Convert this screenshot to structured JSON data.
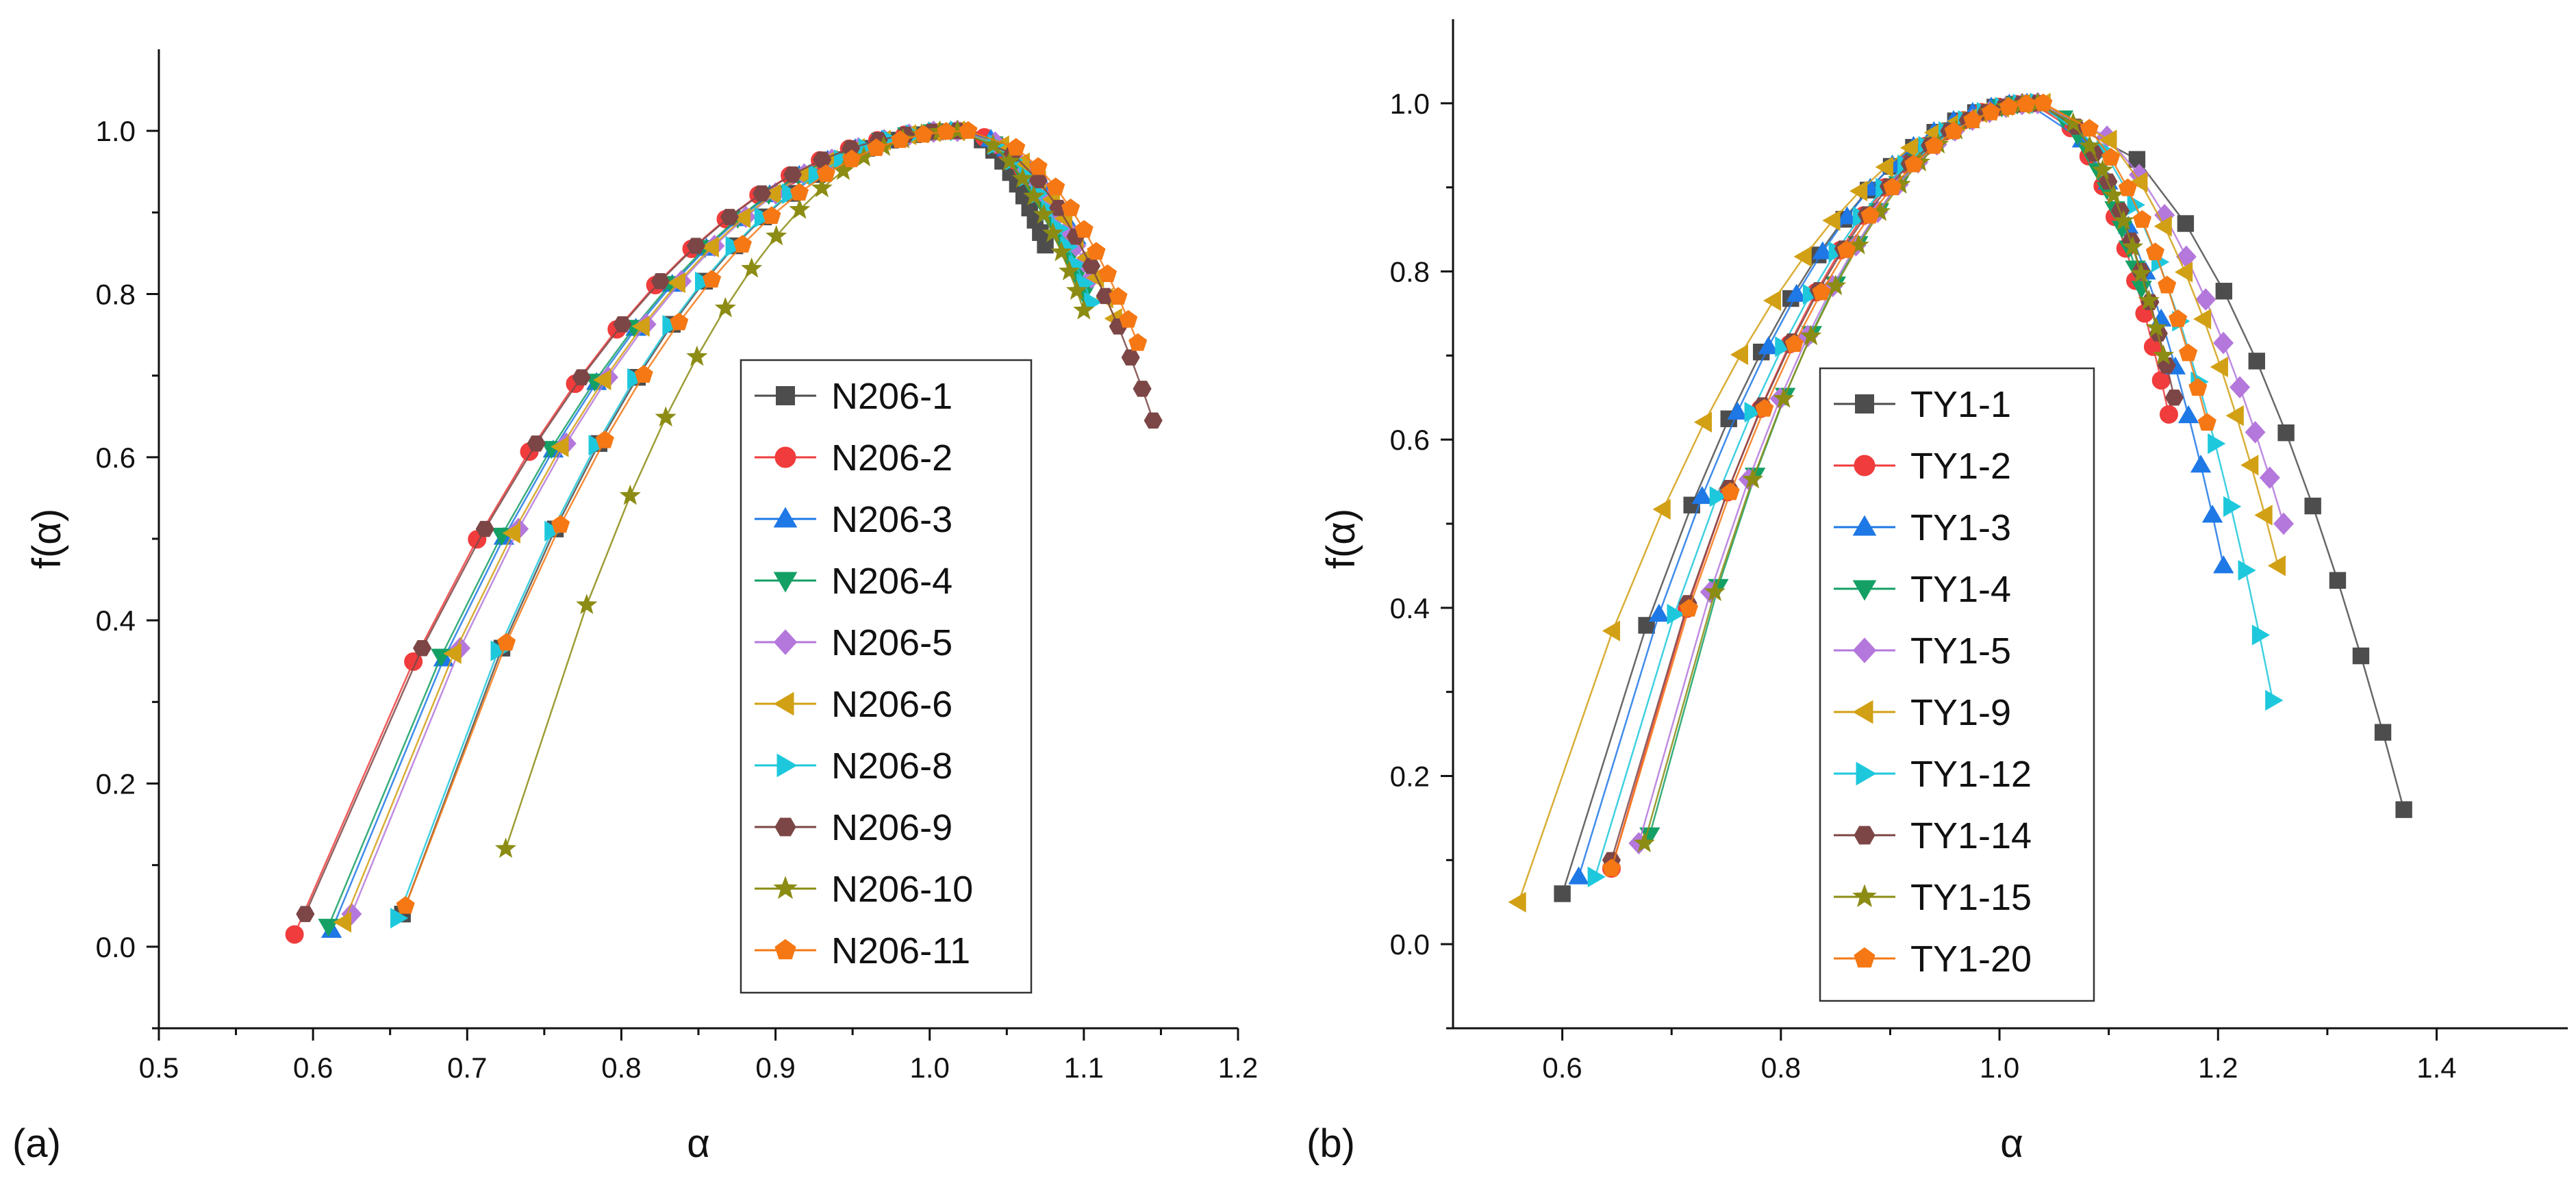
{
  "chart_data": [
    {
      "type": "line",
      "panel_label": "(a)",
      "title": "",
      "xlabel": "α",
      "ylabel": "f(α)",
      "xlim": [
        0.5,
        1.2
      ],
      "ylim": [
        -0.1,
        1.1
      ],
      "xticks": [
        0.5,
        0.6,
        0.7,
        0.8,
        0.9,
        1.0,
        1.1,
        1.2
      ],
      "xtick_labels": [
        "0.5",
        "0.6",
        "0.7",
        "0.8",
        "0.9",
        "1.0",
        "1.1",
        "1.2"
      ],
      "yticks": [
        0.0,
        0.2,
        0.4,
        0.6,
        0.8,
        1.0
      ],
      "ytick_labels": [
        "0.0",
        "0.2",
        "0.4",
        "0.6",
        "0.8",
        "1.0"
      ],
      "grid": false,
      "legend_position": "center-right",
      "series": [
        {
          "name": "N206-1",
          "color": "#4d4d4d",
          "marker": "square",
          "alpha_min": 0.658,
          "alpha_peak": 1.018,
          "alpha_max": 1.075,
          "f_min_left": 0.04,
          "f_min_right": 0.86
        },
        {
          "name": "N206-2",
          "color": "#f03c3c",
          "marker": "circle",
          "alpha_min": 0.588,
          "alpha_peak": 1.018,
          "alpha_max": 1.08,
          "f_min_left": 0.015,
          "f_min_right": 0.9
        },
        {
          "name": "N206-3",
          "color": "#1e78e6",
          "marker": "triangle-up",
          "alpha_min": 0.612,
          "alpha_peak": 1.018,
          "alpha_max": 1.095,
          "f_min_left": 0.02,
          "f_min_right": 0.87
        },
        {
          "name": "N206-4",
          "color": "#14a064",
          "marker": "triangle-down",
          "alpha_min": 0.61,
          "alpha_peak": 1.018,
          "alpha_max": 1.1,
          "f_min_left": 0.025,
          "f_min_right": 0.8
        },
        {
          "name": "N206-5",
          "color": "#b478dc",
          "marker": "diamond",
          "alpha_min": 0.625,
          "alpha_peak": 1.018,
          "alpha_max": 1.105,
          "f_min_left": 0.04,
          "f_min_right": 0.82
        },
        {
          "name": "N206-6",
          "color": "#d2a014",
          "marker": "triangle-left",
          "alpha_min": 0.62,
          "alpha_peak": 1.018,
          "alpha_max": 1.12,
          "f_min_left": 0.03,
          "f_min_right": 0.77
        },
        {
          "name": "N206-8",
          "color": "#1ec8dc",
          "marker": "triangle-right",
          "alpha_min": 0.655,
          "alpha_peak": 1.018,
          "alpha_max": 1.105,
          "f_min_left": 0.035,
          "f_min_right": 0.79
        },
        {
          "name": "N206-9",
          "color": "#7d4646",
          "marker": "hexagon",
          "alpha_min": 0.595,
          "alpha_peak": 1.018,
          "alpha_max": 1.145,
          "f_min_left": 0.04,
          "f_min_right": 0.645
        },
        {
          "name": "N206-10",
          "color": "#8c8c14",
          "marker": "star",
          "alpha_min": 0.725,
          "alpha_peak": 1.018,
          "alpha_max": 1.1,
          "f_min_left": 0.12,
          "f_min_right": 0.78
        },
        {
          "name": "N206-11",
          "color": "#f57814",
          "marker": "pentagon",
          "alpha_min": 0.66,
          "alpha_peak": 1.025,
          "alpha_max": 1.135,
          "f_min_left": 0.05,
          "f_min_right": 0.74
        }
      ]
    },
    {
      "type": "line",
      "panel_label": "(b)",
      "title": "",
      "xlabel": "α",
      "ylabel": "f(α)",
      "xlim": [
        0.5,
        1.52
      ],
      "ylim": [
        -0.1,
        1.1
      ],
      "xticks": [
        0.6,
        0.8,
        1.0,
        1.2,
        1.4
      ],
      "xtick_labels": [
        "0.6",
        "0.8",
        "1.0",
        "1.2",
        "1.4"
      ],
      "yticks": [
        0.0,
        0.2,
        0.4,
        0.6,
        0.8,
        1.0
      ],
      "ytick_labels": [
        "0.0",
        "0.2",
        "0.4",
        "0.6",
        "0.8",
        "1.0"
      ],
      "grid": false,
      "legend_position": "center-left",
      "series": [
        {
          "name": "TY1-1",
          "color": "#4d4d4d",
          "marker": "square",
          "alpha_min": 0.6,
          "alpha_peak": 1.03,
          "alpha_max": 1.37,
          "f_min_left": 0.06,
          "f_min_right": 0.16
        },
        {
          "name": "TY1-2",
          "color": "#f03c3c",
          "marker": "circle",
          "alpha_min": 0.645,
          "alpha_peak": 1.03,
          "alpha_max": 1.155,
          "f_min_left": 0.09,
          "f_min_right": 0.63
        },
        {
          "name": "TY1-3",
          "color": "#1e78e6",
          "marker": "triangle-up",
          "alpha_min": 0.615,
          "alpha_peak": 1.025,
          "alpha_max": 1.205,
          "f_min_left": 0.08,
          "f_min_right": 0.45
        },
        {
          "name": "TY1-4",
          "color": "#14a064",
          "marker": "triangle-down",
          "alpha_min": 0.68,
          "alpha_peak": 1.03,
          "alpha_max": 1.13,
          "f_min_left": 0.13,
          "f_min_right": 0.78
        },
        {
          "name": "TY1-5",
          "color": "#b478dc",
          "marker": "diamond",
          "alpha_min": 0.67,
          "alpha_peak": 1.035,
          "alpha_max": 1.26,
          "f_min_left": 0.12,
          "f_min_right": 0.5
        },
        {
          "name": "TY1-9",
          "color": "#d2a014",
          "marker": "triangle-left",
          "alpha_min": 0.56,
          "alpha_peak": 1.04,
          "alpha_max": 1.255,
          "f_min_left": 0.05,
          "f_min_right": 0.45
        },
        {
          "name": "TY1-12",
          "color": "#1ec8dc",
          "marker": "triangle-right",
          "alpha_min": 0.63,
          "alpha_peak": 1.035,
          "alpha_max": 1.25,
          "f_min_left": 0.08,
          "f_min_right": 0.29
        },
        {
          "name": "TY1-14",
          "color": "#7d4646",
          "marker": "hexagon",
          "alpha_min": 0.645,
          "alpha_peak": 1.035,
          "alpha_max": 1.16,
          "f_min_left": 0.1,
          "f_min_right": 0.65
        },
        {
          "name": "TY1-15",
          "color": "#8c8c14",
          "marker": "star",
          "alpha_min": 0.675,
          "alpha_peak": 1.035,
          "alpha_max": 1.15,
          "f_min_left": 0.12,
          "f_min_right": 0.7
        },
        {
          "name": "TY1-20",
          "color": "#f57814",
          "marker": "pentagon",
          "alpha_min": 0.645,
          "alpha_peak": 1.04,
          "alpha_max": 1.19,
          "f_min_left": 0.09,
          "f_min_right": 0.62
        }
      ]
    }
  ]
}
